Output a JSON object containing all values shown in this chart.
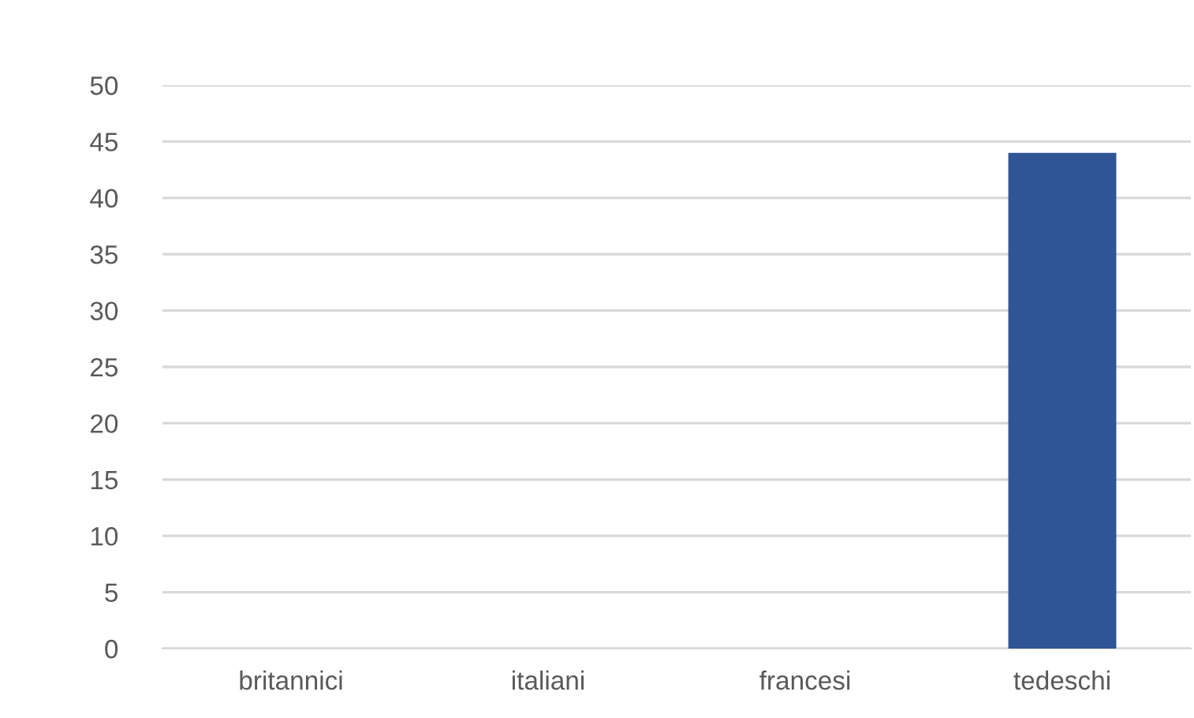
{
  "chart_data": {
    "type": "bar",
    "categories": [
      "britannici",
      "italiani",
      "francesi",
      "tedeschi"
    ],
    "values": [
      0,
      0,
      0,
      44
    ],
    "color": "#2f5597",
    "ylim": [
      0,
      50
    ],
    "yticks": [
      0,
      5,
      10,
      15,
      20,
      25,
      30,
      35,
      40,
      45,
      50
    ],
    "grid": "y",
    "legend": false
  }
}
